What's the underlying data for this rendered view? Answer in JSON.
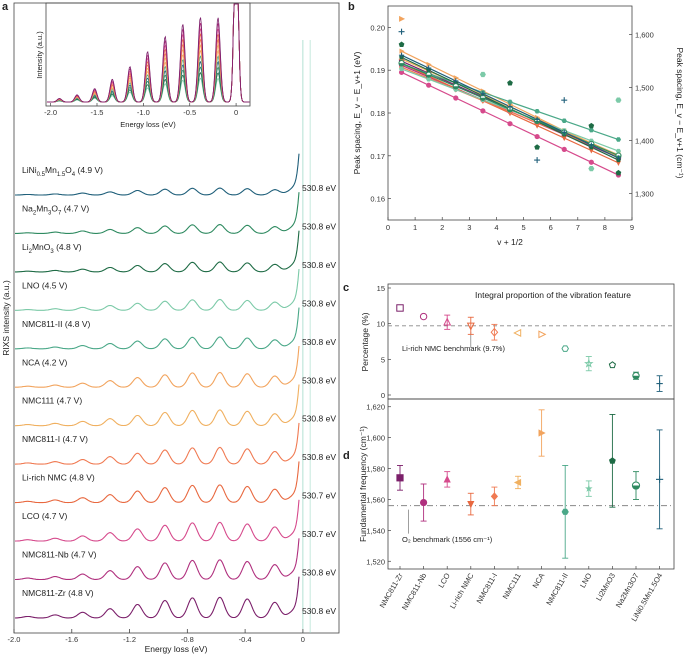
{
  "panels": {
    "a": "a",
    "b": "b",
    "c": "c",
    "d": "d"
  },
  "colors": {
    "LiNi0.5Mn1.5O4": "#1f5f7a",
    "Na2Mn3O7": "#2e8a60",
    "Li2MnO3": "#1e6b45",
    "LNO": "#7ccaa8",
    "NMC811-II": "#4aa888",
    "NCA": "#f2a45e",
    "NMC111": "#f0b060",
    "NMC811-I": "#f07a52",
    "Li-rich NMC": "#e8683f",
    "LCO": "#d64a8c",
    "NMC811-Nb": "#b0307e",
    "NMC811-Zr": "#7b1f6a",
    "benchmark_line": "#888888"
  },
  "panel_a": {
    "xlabel": "Energy loss (eV)",
    "ylabel": "RIXS intensity (a.u.)",
    "xticks": [
      "-2.0",
      "-1.6",
      "-1.2",
      "-0.8",
      "-0.4",
      "0"
    ],
    "xlim": [
      -2.0,
      0.25
    ],
    "spectra": [
      {
        "label_pre": "LiNi",
        "sub1": "0.5",
        "mid": "Mn",
        "sub2": "1.5",
        "mid2": "O",
        "sub3": "4",
        "label_post": " (4.9 V)",
        "energy": "530.8 eV",
        "series": "LiNi0.5Mn1.5O4",
        "amp": 0.35
      },
      {
        "label_pre": "Na",
        "sub1": "2",
        "mid": "Mn",
        "sub2": "3",
        "mid2": "O",
        "sub3": "7",
        "label_post": " (4.7 V)",
        "energy": "530.8 eV",
        "series": "Na2Mn3O7",
        "amp": 0.45
      },
      {
        "label_pre": "Li",
        "sub1": "2",
        "mid": "MnO",
        "sub2": "3",
        "mid2": "",
        "sub3": "",
        "label_post": " (4.8 V)",
        "energy": "530.8 eV",
        "series": "Li2MnO3",
        "amp": 0.5
      },
      {
        "label_pre": "LNO (4.5 V)",
        "sub1": "",
        "mid": "",
        "sub2": "",
        "mid2": "",
        "sub3": "",
        "label_post": "",
        "energy": "530.8 eV",
        "series": "LNO",
        "amp": 0.55
      },
      {
        "label_pre": "NMC811-II (4.8 V)",
        "sub1": "",
        "mid": "",
        "sub2": "",
        "mid2": "",
        "sub3": "",
        "label_post": "",
        "energy": "530.8 eV",
        "series": "NMC811-II",
        "amp": 0.6
      },
      {
        "label_pre": "NCA (4.2 V)",
        "sub1": "",
        "mid": "",
        "sub2": "",
        "mid2": "",
        "sub3": "",
        "label_post": "",
        "energy": "530.8 eV",
        "series": "NCA",
        "amp": 0.75
      },
      {
        "label_pre": "NMC111 (4.7 V)",
        "sub1": "",
        "mid": "",
        "sub2": "",
        "mid2": "",
        "sub3": "",
        "label_post": "",
        "energy": "530.8 eV",
        "series": "NMC111",
        "amp": 0.8
      },
      {
        "label_pre": "NMC811-I (4.7 V)",
        "sub1": "",
        "mid": "",
        "sub2": "",
        "mid2": "",
        "sub3": "",
        "label_post": "",
        "energy": "530.8 eV",
        "series": "NMC811-I",
        "amp": 0.85
      },
      {
        "label_pre": "Li-rich NMC (4.8 V)",
        "sub1": "",
        "mid": "",
        "sub2": "",
        "mid2": "",
        "sub3": "",
        "label_post": "",
        "energy": "530.7 eV",
        "series": "Li-rich NMC",
        "amp": 0.9
      },
      {
        "label_pre": "LCO (4.7 V)",
        "sub1": "",
        "mid": "",
        "sub2": "",
        "mid2": "",
        "sub3": "",
        "label_post": "",
        "energy": "530.7 eV",
        "series": "LCO",
        "amp": 0.95
      },
      {
        "label_pre": "NMC811-Nb (4.7 V)",
        "sub1": "",
        "mid": "",
        "sub2": "",
        "mid2": "",
        "sub3": "",
        "label_post": "",
        "energy": "530.8 eV",
        "series": "NMC811-Nb",
        "amp": 1.0
      },
      {
        "label_pre": "NMC811-Zr (4.8 V)",
        "sub1": "",
        "mid": "",
        "sub2": "",
        "mid2": "",
        "sub3": "",
        "label_post": "",
        "energy": "530.8 eV",
        "series": "NMC811-Zr",
        "amp": 1.05
      }
    ],
    "inset": {
      "xlabel": "Energy loss (eV)",
      "ylabel": "Intensity (a.u.)",
      "xticks": [
        "-2.0",
        "-1.5",
        "-1.0",
        "-0.5",
        "0"
      ]
    }
  },
  "chart_data": [
    {
      "type": "line",
      "title": "b",
      "xlabel": "v + 1/2",
      "ylabel_left": "Peak spacing, E_v − E_v+1 (eV)",
      "ylabel_right": "Peak spacing, E_v − E_v+1 (cm⁻¹)",
      "xlim": [
        0,
        9
      ],
      "ylim": [
        0.155,
        0.205
      ],
      "xticks": [
        "0",
        "1",
        "2",
        "3",
        "4",
        "5",
        "6",
        "7",
        "8",
        "9"
      ],
      "yticks": [
        "0.16",
        "0.17",
        "0.18",
        "0.19",
        "0.20"
      ],
      "yticks_right": [
        "1,300",
        "1,400",
        "1,500",
        "1,600"
      ],
      "fits": [
        {
          "series": "NMC811-Zr",
          "y0": 0.1935,
          "slope": -0.0028
        },
        {
          "series": "NMC811-Nb",
          "y0": 0.1925,
          "slope": -0.0027
        },
        {
          "series": "LCO",
          "y0": 0.191,
          "slope": -0.003
        },
        {
          "series": "Li-rich NMC",
          "y0": 0.193,
          "slope": -0.0029
        },
        {
          "series": "NMC811-I",
          "y0": 0.192,
          "slope": -0.0026
        },
        {
          "series": "NMC111",
          "y0": 0.194,
          "slope": -0.0028
        },
        {
          "series": "NCA",
          "y0": 0.196,
          "slope": -0.0031
        },
        {
          "series": "NMC811-II",
          "y0": 0.1925,
          "slope": -0.0022
        },
        {
          "series": "LNO",
          "y0": 0.1915,
          "slope": -0.0024
        },
        {
          "series": "Li2MnO3",
          "y0": 0.1945,
          "slope": -0.003
        },
        {
          "series": "Na2Mn3O7",
          "y0": 0.193,
          "slope": -0.0027
        },
        {
          "series": "LiNi0.5Mn1.5O4",
          "y0": 0.195,
          "slope": -0.003
        }
      ],
      "outliers": [
        {
          "series": "NCA",
          "x": 0.5,
          "y": 0.202,
          "marker": "tri-right"
        },
        {
          "series": "LiNi0.5Mn1.5O4",
          "x": 0.5,
          "y": 0.199,
          "marker": "plus"
        },
        {
          "series": "Li2MnO3",
          "x": 0.5,
          "y": 0.196,
          "marker": "pentagon"
        },
        {
          "series": "LNO",
          "x": 3.5,
          "y": 0.189,
          "marker": "hexagon"
        },
        {
          "series": "Li2MnO3",
          "x": 4.5,
          "y": 0.187,
          "marker": "pentagon"
        },
        {
          "series": "Li2MnO3",
          "x": 5.5,
          "y": 0.172,
          "marker": "pentagon"
        },
        {
          "series": "LiNi0.5Mn1.5O4",
          "x": 5.5,
          "y": 0.169,
          "marker": "plus"
        },
        {
          "series": "LiNi0.5Mn1.5O4",
          "x": 6.5,
          "y": 0.183,
          "marker": "plus"
        },
        {
          "series": "Li2MnO3",
          "x": 7.5,
          "y": 0.177,
          "marker": "pentagon"
        },
        {
          "series": "LNO",
          "x": 8.5,
          "y": 0.183,
          "marker": "hexagon"
        },
        {
          "series": "LNO",
          "x": 7.5,
          "y": 0.167,
          "marker": "hexagon"
        },
        {
          "series": "Li2MnO3",
          "x": 8.5,
          "y": 0.166,
          "marker": "pentagon"
        }
      ]
    },
    {
      "type": "scatter",
      "title": "Integral proportion of the vibration feature",
      "ylabel": "Percentage (%)",
      "ylim": [
        0,
        15
      ],
      "yticks": [
        "0",
        "5",
        "10",
        "15"
      ],
      "benchmark": {
        "value": 9.7,
        "label": "Li-rich NMC benchmark (9.7%)"
      },
      "categories": [
        "NMC811-Zr",
        "NMC811-Nb",
        "LCO",
        "Li-rich NMC",
        "NMC811-I",
        "NMC111",
        "NCA",
        "NMC811-II",
        "LNO",
        "Li2MnO3",
        "Na2Mn3O7",
        "LiNi0.5Mn1.5O4"
      ],
      "values": [
        12.2,
        11.0,
        10.2,
        9.7,
        8.8,
        8.7,
        8.5,
        6.5,
        4.4,
        4.2,
        2.7,
        1.6
      ],
      "errors": [
        0,
        0,
        1.0,
        1.2,
        1.1,
        0,
        0,
        0,
        1.0,
        0,
        0.5,
        1.1
      ],
      "markers": [
        "square",
        "circle",
        "triangle-up",
        "triangle-down",
        "diamond",
        "triangle-left",
        "triangle-right",
        "hexagon",
        "star",
        "pentagon",
        "circle-half",
        "plus"
      ]
    },
    {
      "type": "scatter",
      "ylabel": "Fundamental frequency (cm⁻¹)",
      "ylim": [
        1515,
        1625
      ],
      "yticks": [
        "1,520",
        "1,540",
        "1,560",
        "1,580",
        "1,600",
        "1,620"
      ],
      "benchmark": {
        "value": 1556,
        "label": "O₂ benchmark (1556 cm⁻¹)"
      },
      "categories": [
        "NMC811-Zr",
        "NMC811-Nb",
        "LCO",
        "Li-rich NMC",
        "NMC811-I",
        "NMC111",
        "NCA",
        "NMC811-II",
        "LNO",
        "Li2MnO3",
        "Na2Mn3O7",
        "LiNi0.5Mn1.5O4"
      ],
      "values": [
        1574,
        1558,
        1573,
        1557,
        1562,
        1571,
        1603,
        1552,
        1567,
        1585,
        1569,
        1573
      ],
      "errors": [
        8,
        12,
        5,
        7,
        6,
        4,
        15,
        30,
        5,
        30,
        9,
        32
      ],
      "markers": [
        "square",
        "circle",
        "triangle-up",
        "triangle-down",
        "diamond",
        "triangle-left",
        "triangle-right",
        "hexagon",
        "star",
        "pentagon",
        "circle-half",
        "plus"
      ]
    }
  ],
  "panel_d_xlabels": [
    "NMC811-Zr",
    "NMC811-Nb",
    "LCO",
    "Li-rich NMC",
    "NMC811-I",
    "NMC111",
    "NCA",
    "NMC811-II",
    "LNO",
    "Li2MnO3",
    "Na2Mn3O7",
    "LiNi0.5Mn1.5O4"
  ]
}
